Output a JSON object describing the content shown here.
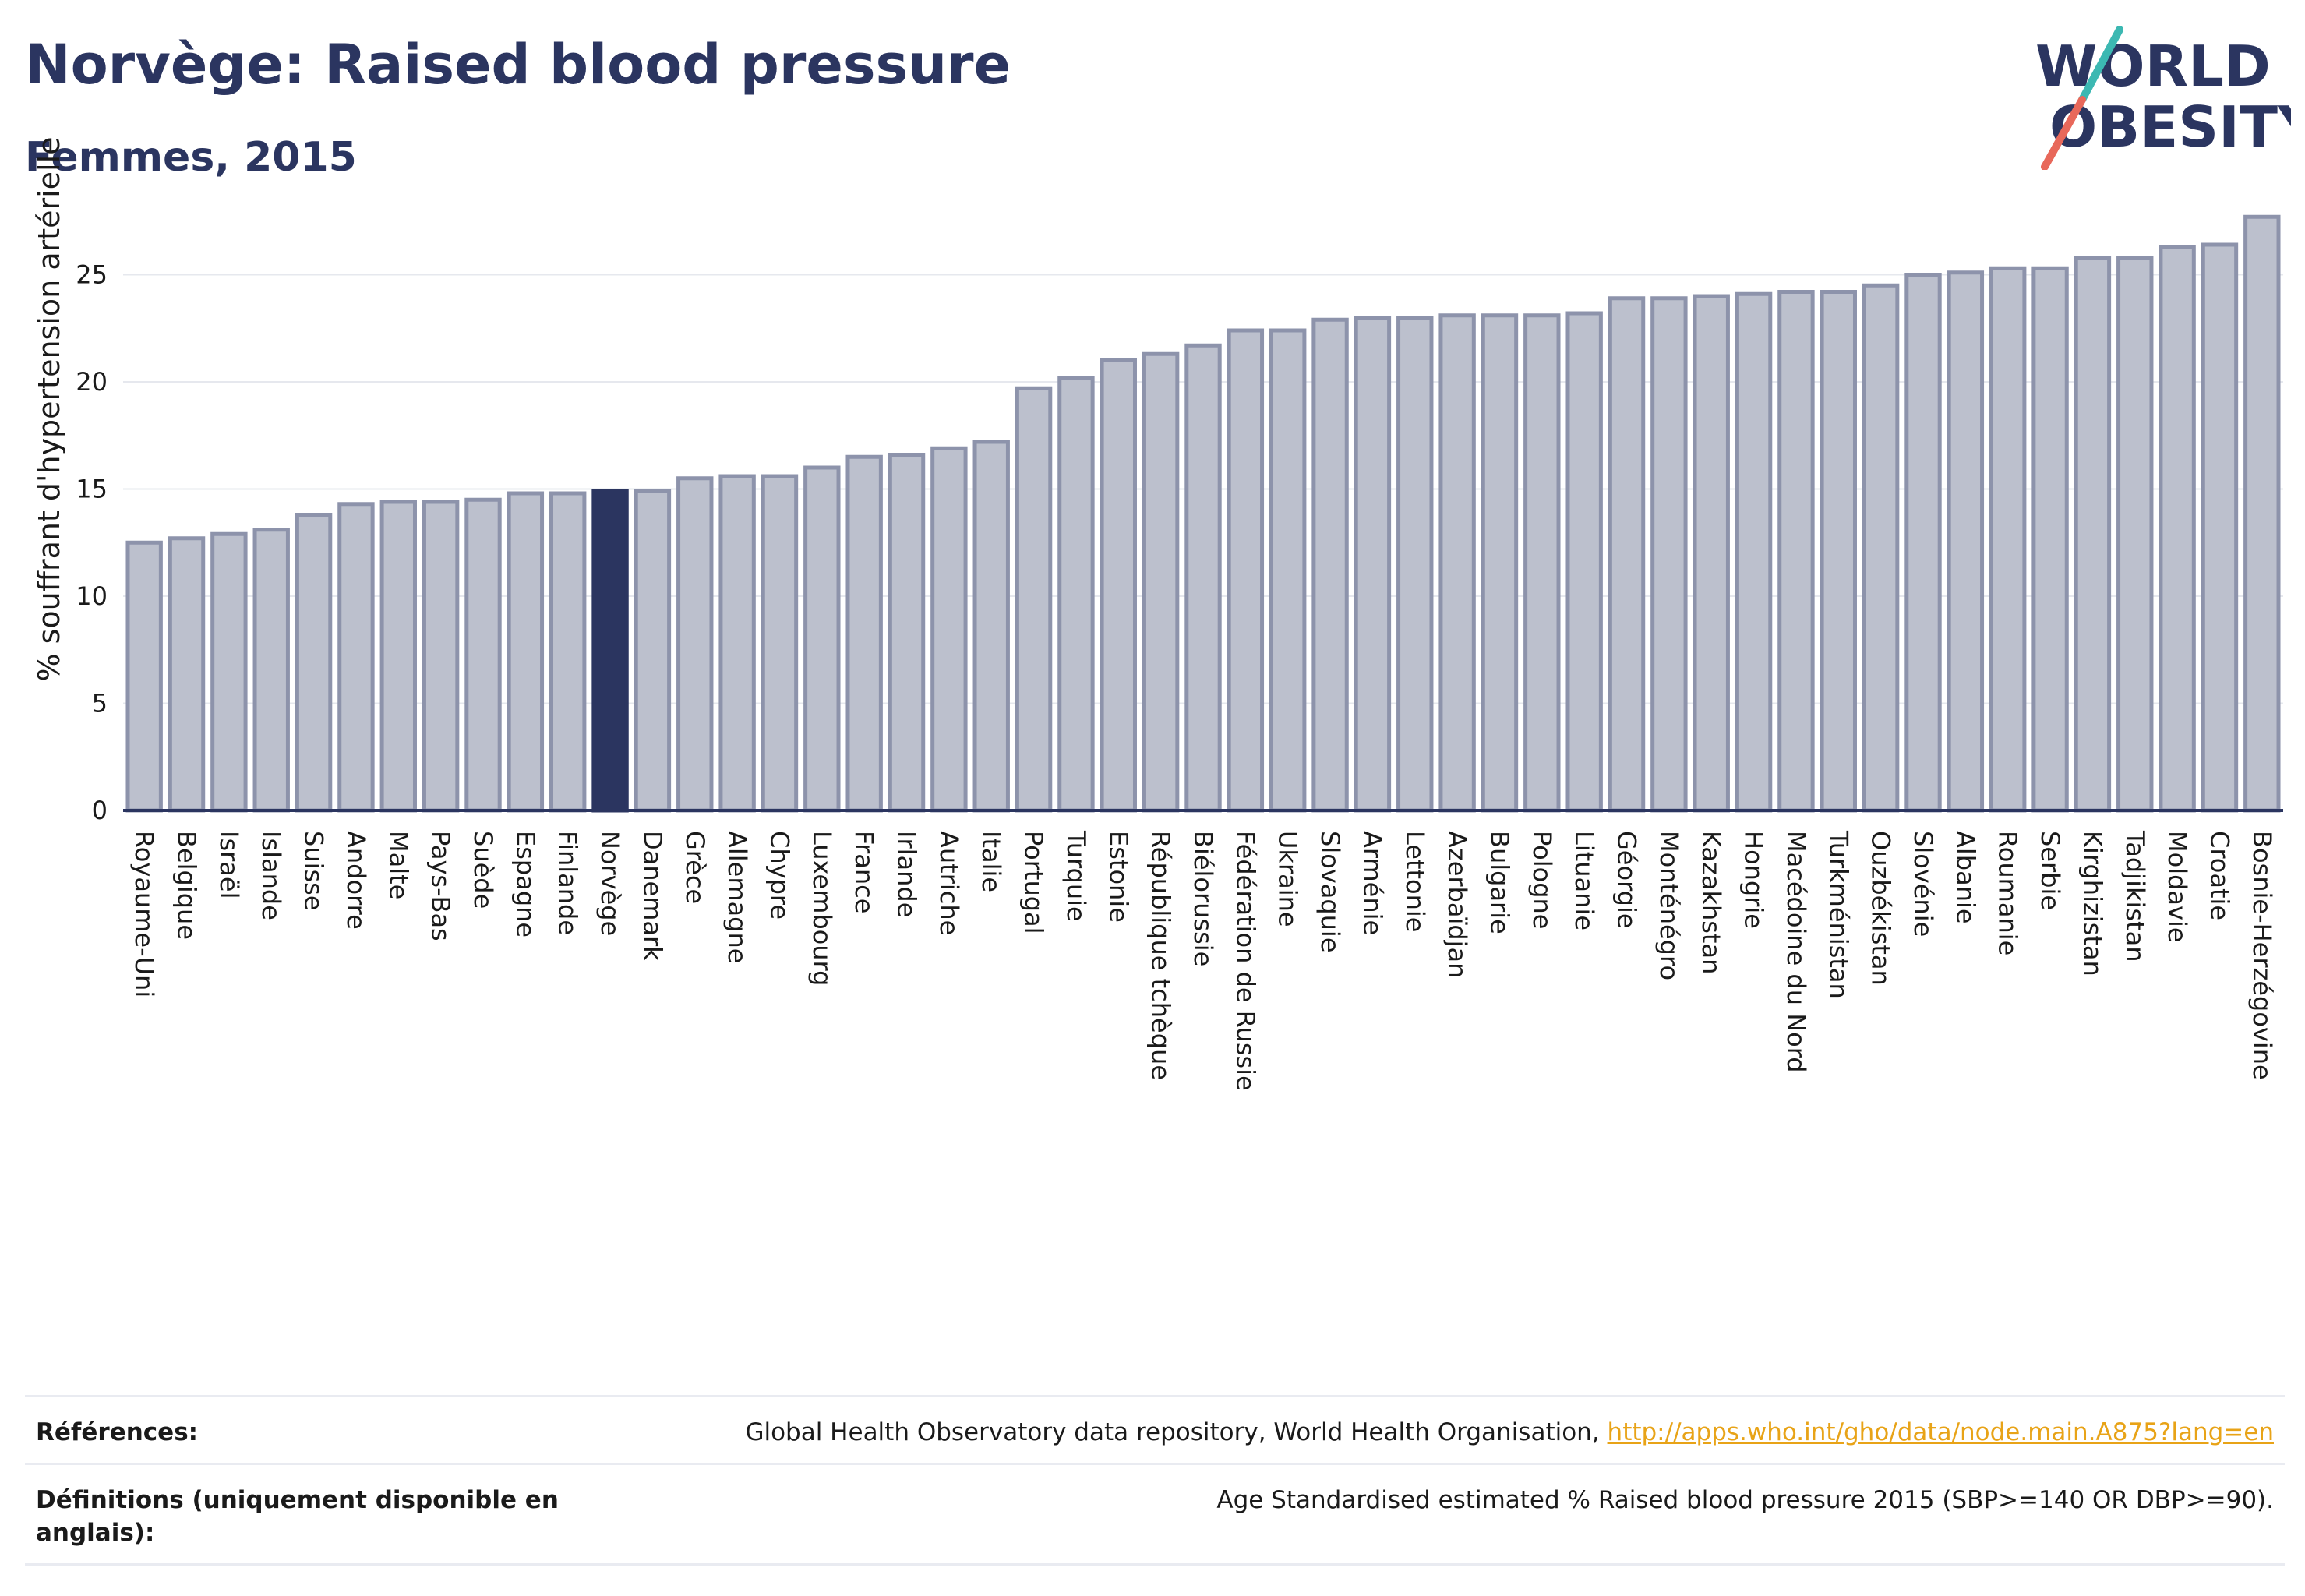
{
  "title": "Norvège: Raised blood pressure",
  "subtitle": "Femmes, 2015",
  "logo": {
    "line1": "WORLD",
    "line2": "OBESITY",
    "colors": {
      "text": "#2b3560",
      "slash_top": "#3cb8b2",
      "slash_bottom": "#e8685a"
    }
  },
  "colors": {
    "bar": "#bcc0cd",
    "bar_border": "#8d93ab",
    "highlight": "#2b3560",
    "link": "#e8a317"
  },
  "chart_data": {
    "type": "bar",
    "ylabel": "% souffrant d'hypertension artérielle",
    "ylim": [
      0,
      28
    ],
    "yticks": [
      0,
      5,
      10,
      15,
      20,
      25
    ],
    "grid": true,
    "highlight": "Norvège",
    "categories": [
      "Royaume-Uni",
      "Belgique",
      "Israël",
      "Islande",
      "Suisse",
      "Andorre",
      "Malte",
      "Pays-Bas",
      "Suède",
      "Espagne",
      "Finlande",
      "Norvège",
      "Danemark",
      "Grèce",
      "Allemagne",
      "Chypre",
      "Luxembourg",
      "France",
      "Irlande",
      "Autriche",
      "Italie",
      "Portugal",
      "Turquie",
      "Estonie",
      "République tchèque",
      "Biélorussie",
      "Fédération de Russie",
      "Ukraine",
      "Slovaquie",
      "Arménie",
      "Lettonie",
      "Azerbaïdjan",
      "Bulgarie",
      "Pologne",
      "Lituanie",
      "Géorgie",
      "Monténégro",
      "Kazakhstan",
      "Hongrie",
      "Macédoine du Nord",
      "Turkménistan",
      "Ouzbékistan",
      "Slovénie",
      "Albanie",
      "Roumanie",
      "Serbie",
      "Kirghizistan",
      "Tadjikistan",
      "Moldavie",
      "Croatie",
      "Bosnie-Herzégovine"
    ],
    "values": [
      12.5,
      12.7,
      12.9,
      13.1,
      13.8,
      14.3,
      14.4,
      14.4,
      14.5,
      14.8,
      14.8,
      14.9,
      14.9,
      15.5,
      15.6,
      15.6,
      16.0,
      16.5,
      16.6,
      16.9,
      17.2,
      19.7,
      20.2,
      21.0,
      21.3,
      21.7,
      22.4,
      22.4,
      22.9,
      23.0,
      23.0,
      23.1,
      23.1,
      23.1,
      23.2,
      23.9,
      23.9,
      24.0,
      24.1,
      24.2,
      24.2,
      24.5,
      25.0,
      25.1,
      25.3,
      25.3,
      25.8,
      25.8,
      26.3,
      26.4,
      27.7
    ]
  },
  "footer": {
    "references_label": "Références:",
    "references_text": "Global Health Observatory data repository, World Health Organisation, ",
    "references_link": "http://apps.who.int/gho/data/node.main.A875?lang=en",
    "definitions_label": "Définitions (uniquement disponible en anglais):",
    "definitions_text": "Age Standardised estimated % Raised blood pressure 2015 (SBP>=140 OR DBP>=90)."
  }
}
